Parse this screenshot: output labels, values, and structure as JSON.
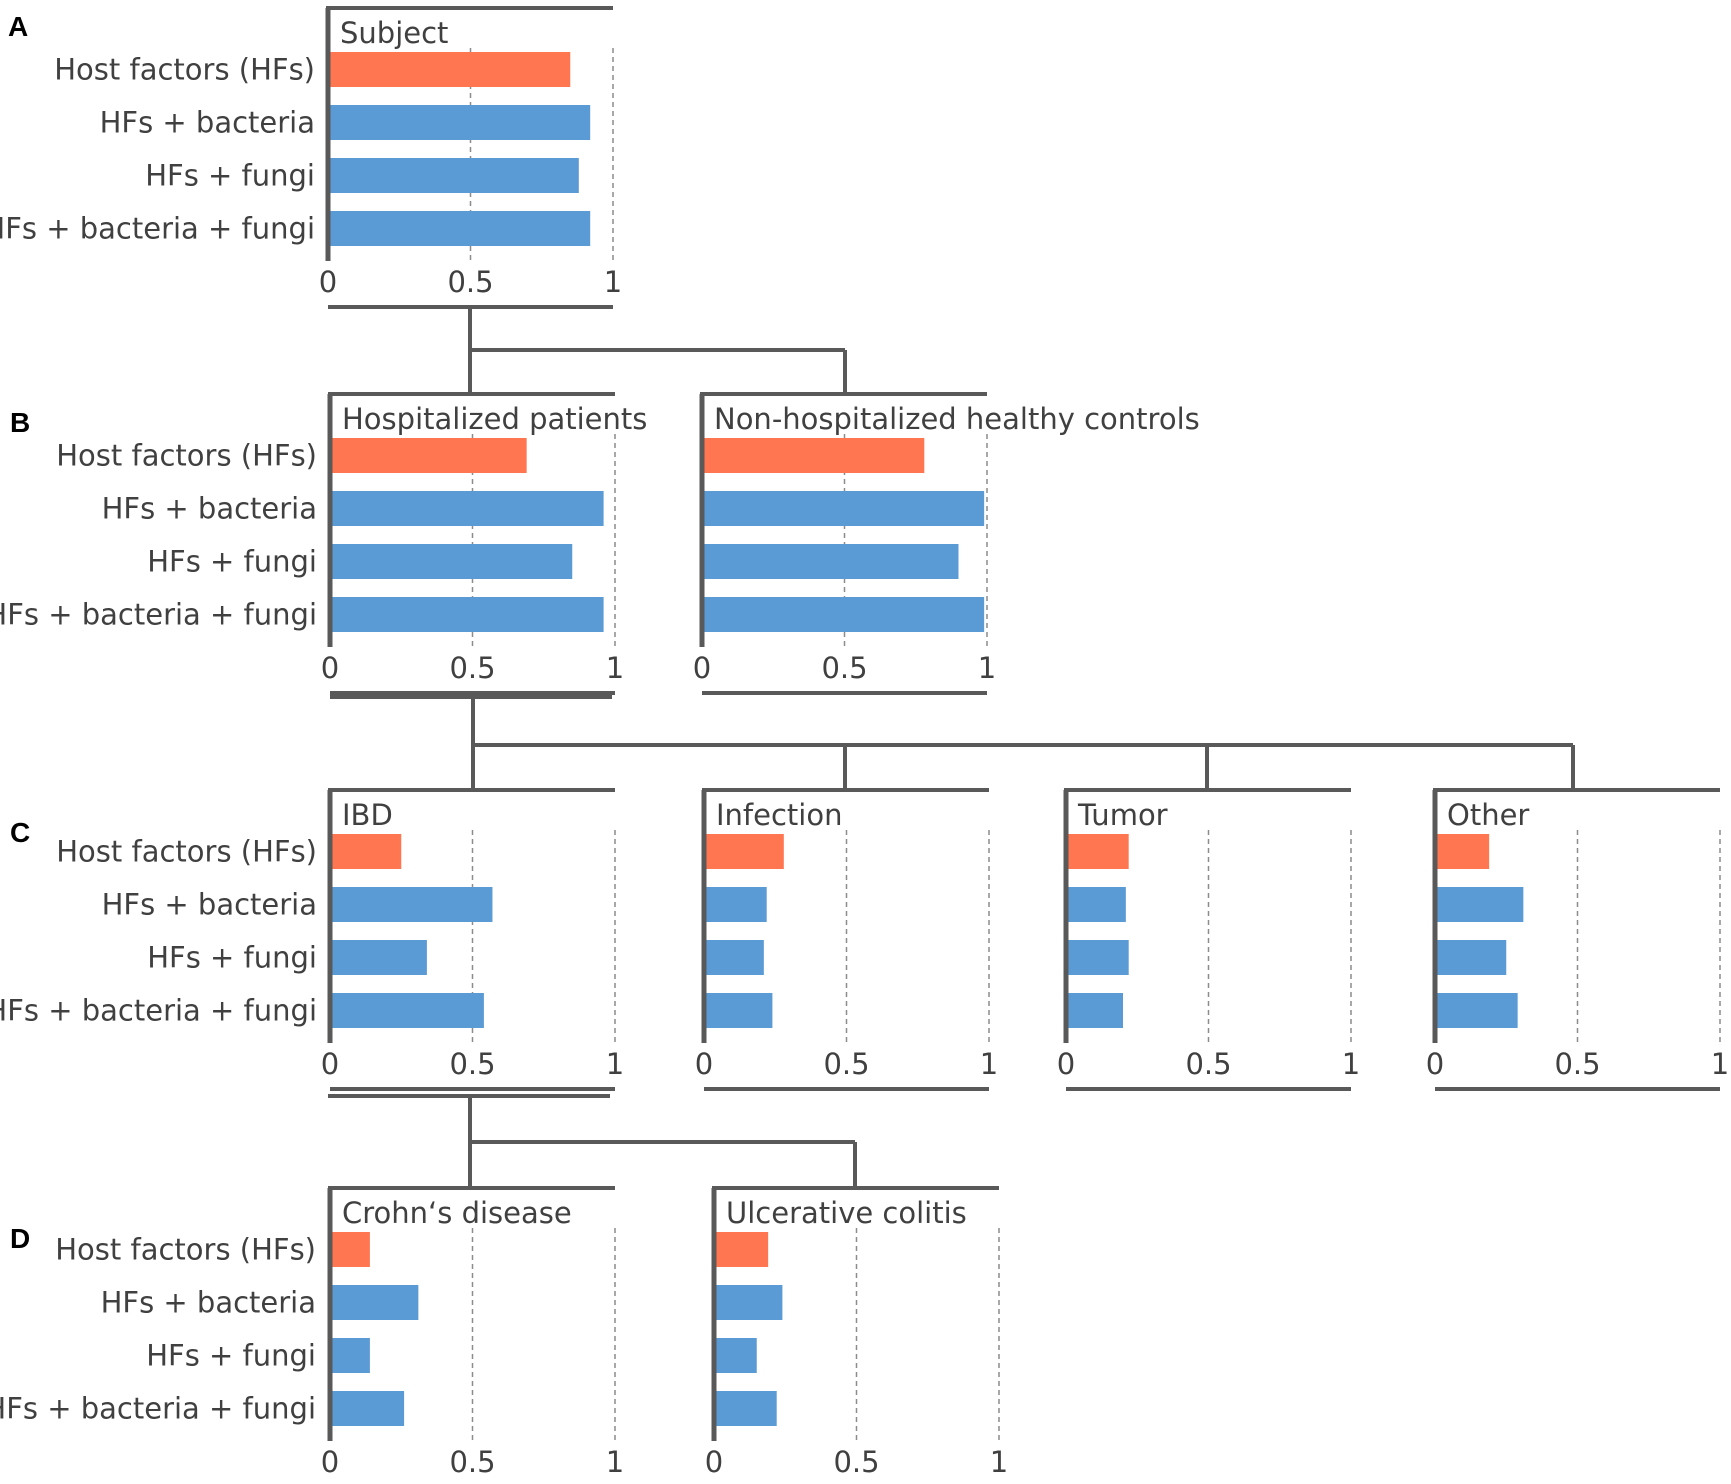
{
  "panel_letters": [
    "A",
    "B",
    "C",
    "D"
  ],
  "colors": {
    "host_factor_bar": "#ff7650",
    "combined_bar": "#5b9bd5",
    "axis": "#595959",
    "grid": "#8c8c8c"
  },
  "chart_data": [
    {
      "id": "subject",
      "panel": "A",
      "type": "bar",
      "orientation": "horizontal",
      "title": "Subject",
      "categories": [
        "Host factors (HFs)",
        "HFs + bacteria",
        "HFs + fungi",
        "HFs + bacteria + fungi"
      ],
      "values": [
        0.85,
        0.92,
        0.88,
        0.92
      ],
      "xlim": [
        0,
        1
      ],
      "xticks": [
        0,
        0.5,
        1
      ],
      "xtick_labels": [
        "0",
        "0.5",
        "1"
      ],
      "grid": "vertical dashed"
    },
    {
      "id": "hospitalized",
      "panel": "B",
      "type": "bar",
      "orientation": "horizontal",
      "title": "Hospitalized patients",
      "categories": [
        "Host factors (HFs)",
        "HFs + bacteria",
        "HFs + fungi",
        "HFs + bacteria + fungi"
      ],
      "values": [
        0.69,
        0.96,
        0.85,
        0.96
      ],
      "xlim": [
        0,
        1
      ],
      "xticks": [
        0,
        0.5,
        1
      ],
      "xtick_labels": [
        "0",
        "0.5",
        "1"
      ],
      "grid": "vertical dashed"
    },
    {
      "id": "nonhospitalized",
      "panel": "B",
      "type": "bar",
      "orientation": "horizontal",
      "title": "Non-hospitalized healthy controls",
      "categories": [
        "Host factors (HFs)",
        "HFs + bacteria",
        "HFs + fungi",
        "HFs + bacteria + fungi"
      ],
      "values": [
        0.78,
        0.99,
        0.9,
        0.99
      ],
      "xlim": [
        0,
        1
      ],
      "xticks": [
        0,
        0.5,
        1
      ],
      "xtick_labels": [
        "0",
        "0.5",
        "1"
      ],
      "grid": "vertical dashed"
    },
    {
      "id": "ibd",
      "panel": "C",
      "type": "bar",
      "orientation": "horizontal",
      "title": "IBD",
      "categories": [
        "Host factors (HFs)",
        "HFs + bacteria",
        "HFs + fungi",
        "HFs + bacteria + fungi"
      ],
      "values": [
        0.25,
        0.57,
        0.34,
        0.54
      ],
      "xlim": [
        0,
        1
      ],
      "xticks": [
        0,
        0.5,
        1
      ],
      "xtick_labels": [
        "0",
        "0.5",
        "1"
      ],
      "grid": "vertical dashed"
    },
    {
      "id": "infection",
      "panel": "C",
      "type": "bar",
      "orientation": "horizontal",
      "title": "Infection",
      "categories": [
        "Host factors (HFs)",
        "HFs + bacteria",
        "HFs + fungi",
        "HFs + bacteria + fungi"
      ],
      "values": [
        0.28,
        0.22,
        0.21,
        0.24
      ],
      "xlim": [
        0,
        1
      ],
      "xticks": [
        0,
        0.5,
        1
      ],
      "xtick_labels": [
        "0",
        "0.5",
        "1"
      ],
      "grid": "vertical dashed"
    },
    {
      "id": "tumor",
      "panel": "C",
      "type": "bar",
      "orientation": "horizontal",
      "title": "Tumor",
      "categories": [
        "Host factors (HFs)",
        "HFs + bacteria",
        "HFs + fungi",
        "HFs + bacteria + fungi"
      ],
      "values": [
        0.22,
        0.21,
        0.22,
        0.2
      ],
      "xlim": [
        0,
        1
      ],
      "xticks": [
        0,
        0.5,
        1
      ],
      "xtick_labels": [
        "0",
        "0.5",
        "1"
      ],
      "grid": "vertical dashed"
    },
    {
      "id": "other",
      "panel": "C",
      "type": "bar",
      "orientation": "horizontal",
      "title": "Other",
      "categories": [
        "Host factors (HFs)",
        "HFs + bacteria",
        "HFs + fungi",
        "HFs + bacteria + fungi"
      ],
      "values": [
        0.19,
        0.31,
        0.25,
        0.29
      ],
      "xlim": [
        0,
        1
      ],
      "xticks": [
        0,
        0.5,
        1
      ],
      "xtick_labels": [
        "0",
        "0.5",
        "1"
      ],
      "grid": "vertical dashed"
    },
    {
      "id": "crohns",
      "panel": "D",
      "type": "bar",
      "orientation": "horizontal",
      "title": "Crohn‘s disease",
      "categories": [
        "Host factors (HFs)",
        "HFs + bacteria",
        "HFs + fungi",
        "HFs + bacteria + fungi"
      ],
      "values": [
        0.14,
        0.31,
        0.14,
        0.26
      ],
      "xlim": [
        0,
        1
      ],
      "xticks": [
        0,
        0.5,
        1
      ],
      "xtick_labels": [
        "0",
        "0.5",
        "1"
      ],
      "grid": "vertical dashed"
    },
    {
      "id": "uc",
      "panel": "D",
      "type": "bar",
      "orientation": "horizontal",
      "title": "Ulcerative colitis",
      "categories": [
        "Host factors (HFs)",
        "HFs + bacteria",
        "HFs + fungi",
        "HFs + bacteria + fungi"
      ],
      "values": [
        0.19,
        0.24,
        0.15,
        0.22
      ],
      "xlim": [
        0,
        1
      ],
      "xticks": [
        0,
        0.5,
        1
      ],
      "xtick_labels": [
        "0",
        "0.5",
        "1"
      ],
      "grid": "vertical dashed"
    }
  ]
}
